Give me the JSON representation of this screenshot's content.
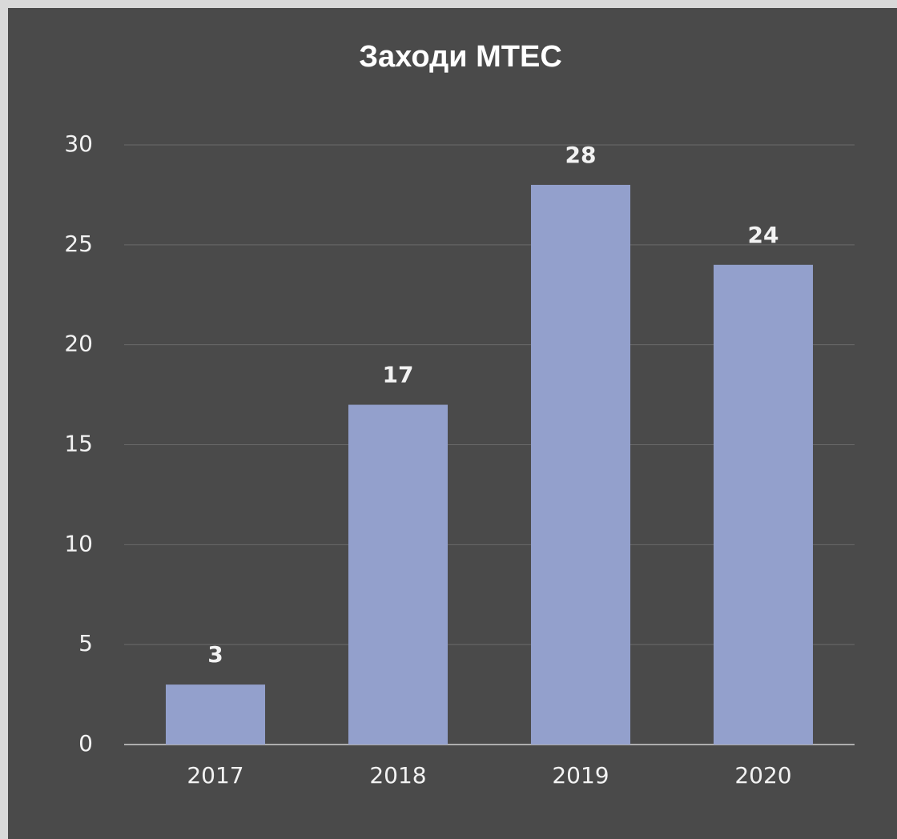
{
  "chart_data": {
    "type": "bar",
    "title": "Заходи МТЕС",
    "categories": [
      "2017",
      "2018",
      "2019",
      "2020"
    ],
    "values": [
      3,
      17,
      28,
      24
    ],
    "color": "#93a0cc",
    "ylim": [
      0,
      30
    ],
    "yticks": [
      0,
      5,
      10,
      15,
      20,
      25,
      30
    ],
    "grid": true,
    "data_labels": true
  }
}
